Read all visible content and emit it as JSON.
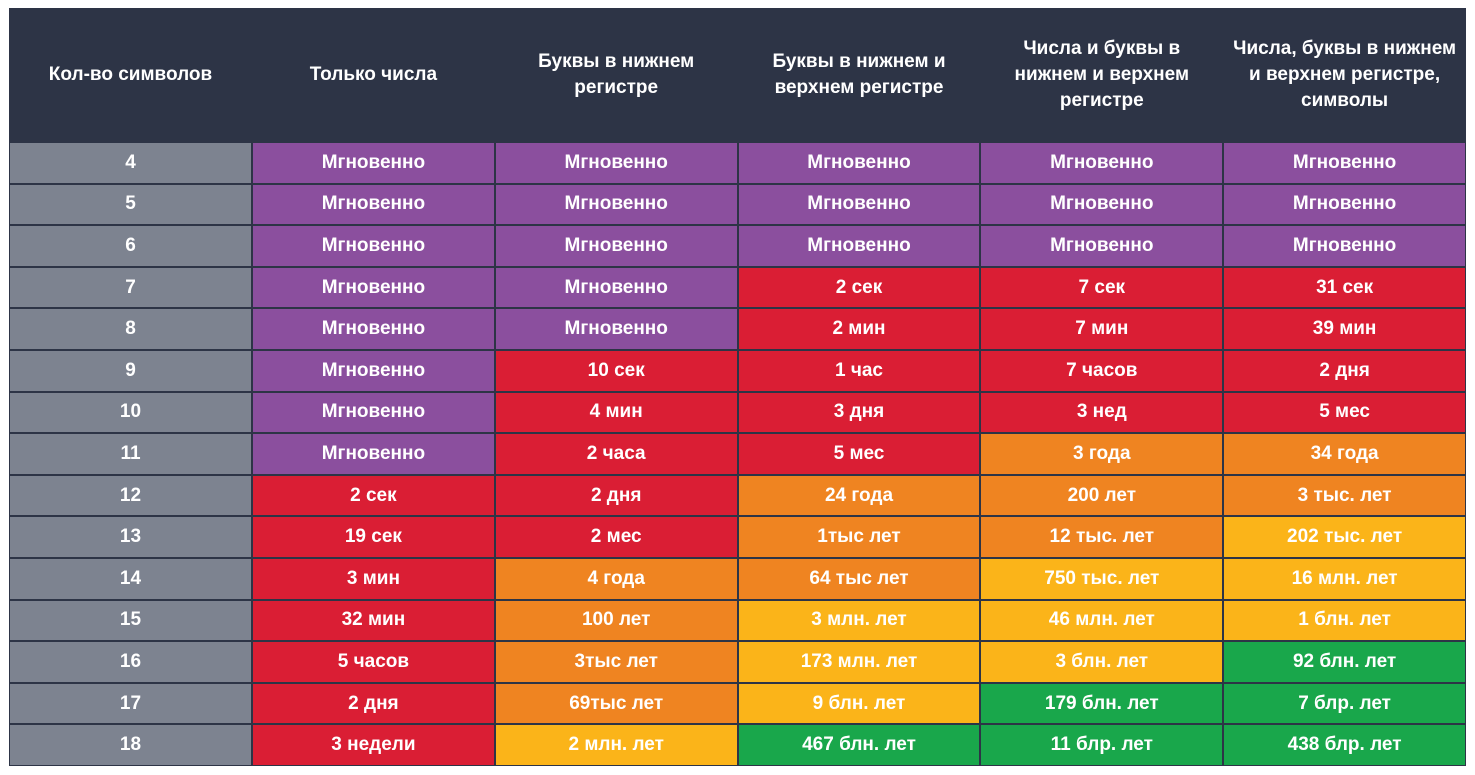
{
  "headers": [
    "Кол-во символов",
    "Только числа",
    "Буквы в нижнем регистре",
    "Буквы в нижнем и верхнем регистре",
    "Числа и буквы в нижнем и верхнем регистре",
    "Числа, буквы в нижнем и верхнем регистре, символы"
  ],
  "colors": {
    "header": "#2d3446",
    "count": "#7d8390",
    "instant": "#8b4f9e",
    "red": "#da1e34",
    "orange": "#ef8421",
    "yellow": "#fbb419",
    "green": "#19a74b"
  },
  "rows": [
    {
      "count": "4",
      "cells": [
        "Мгновенно",
        "Мгновенно",
        "Мгновенно",
        "Мгновенно",
        "Мгновенно"
      ],
      "levels": [
        0,
        0,
        0,
        0,
        0
      ]
    },
    {
      "count": "5",
      "cells": [
        "Мгновенно",
        "Мгновенно",
        "Мгновенно",
        "Мгновенно",
        "Мгновенно"
      ],
      "levels": [
        0,
        0,
        0,
        0,
        0
      ]
    },
    {
      "count": "6",
      "cells": [
        "Мгновенно",
        "Мгновенно",
        "Мгновенно",
        "Мгновенно",
        "Мгновенно"
      ],
      "levels": [
        0,
        0,
        0,
        0,
        0
      ]
    },
    {
      "count": "7",
      "cells": [
        "Мгновенно",
        "Мгновенно",
        "2 сек",
        "7 сек",
        "31 сек"
      ],
      "levels": [
        0,
        0,
        1,
        1,
        1
      ]
    },
    {
      "count": "8",
      "cells": [
        "Мгновенно",
        "Мгновенно",
        "2 мин",
        "7 мин",
        "39 мин"
      ],
      "levels": [
        0,
        0,
        1,
        1,
        1
      ]
    },
    {
      "count": "9",
      "cells": [
        "Мгновенно",
        "10 сек",
        "1 час",
        "7 часов",
        "2 дня"
      ],
      "levels": [
        0,
        1,
        1,
        1,
        1
      ]
    },
    {
      "count": "10",
      "cells": [
        "Мгновенно",
        "4 мин",
        "3 дня",
        "3 нед",
        "5 мес"
      ],
      "levels": [
        0,
        1,
        1,
        1,
        1
      ]
    },
    {
      "count": "11",
      "cells": [
        "Мгновенно",
        "2 часа",
        "5 мес",
        "3 года",
        "34 года"
      ],
      "levels": [
        0,
        1,
        1,
        2,
        2
      ]
    },
    {
      "count": "12",
      "cells": [
        "2 сек",
        "2 дня",
        "24 года",
        "200 лет",
        "3 тыс. лет"
      ],
      "levels": [
        1,
        1,
        2,
        2,
        2
      ]
    },
    {
      "count": "13",
      "cells": [
        "19 сек",
        "2 мес",
        "1тыс лет",
        "12 тыс. лет",
        "202 тыс. лет"
      ],
      "levels": [
        1,
        1,
        2,
        2,
        3
      ]
    },
    {
      "count": "14",
      "cells": [
        "3 мин",
        "4 года",
        "64 тыс лет",
        "750 тыс. лет",
        "16 млн. лет"
      ],
      "levels": [
        1,
        2,
        2,
        3,
        3
      ]
    },
    {
      "count": "15",
      "cells": [
        "32 мин",
        "100 лет",
        "3 млн. лет",
        "46 млн. лет",
        "1 блн. лет"
      ],
      "levels": [
        1,
        2,
        3,
        3,
        3
      ]
    },
    {
      "count": "16",
      "cells": [
        "5 часов",
        "3тыс лет",
        "173 млн. лет",
        "3 блн. лет",
        "92 блн. лет"
      ],
      "levels": [
        1,
        2,
        3,
        3,
        4
      ]
    },
    {
      "count": "17",
      "cells": [
        "2 дня",
        "69тыс лет",
        "9 блн. лет",
        "179 блн. лет",
        "7 блр. лет"
      ],
      "levels": [
        1,
        2,
        3,
        4,
        4
      ]
    },
    {
      "count": "18",
      "cells": [
        "3 недели",
        "2 млн. лет",
        "467 блн. лет",
        "11 блр. лет",
        "438 блр. лет"
      ],
      "levels": [
        1,
        3,
        4,
        4,
        4
      ]
    }
  ]
}
